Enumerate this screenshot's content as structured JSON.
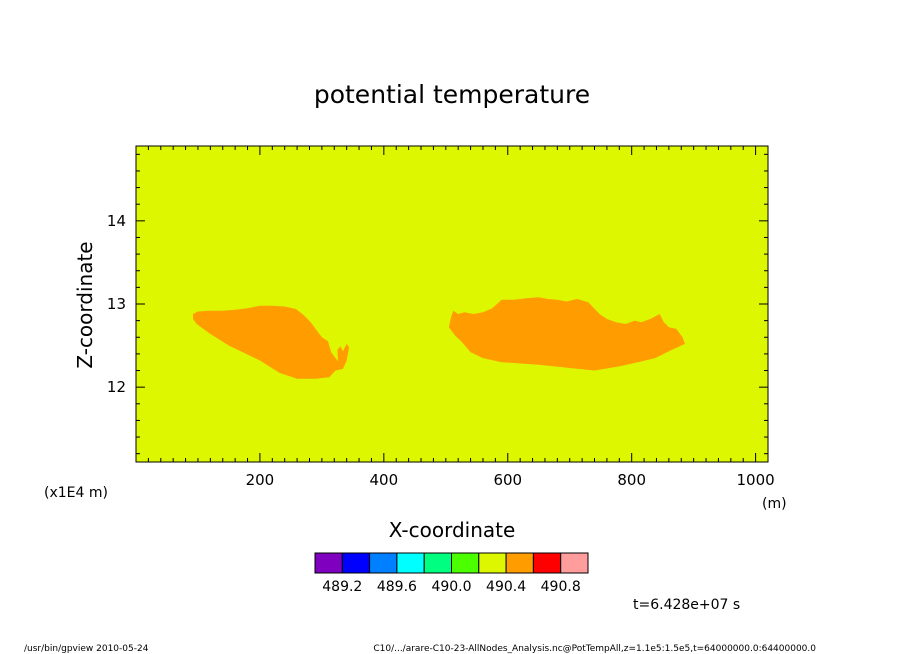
{
  "chart_data": {
    "type": "heatmap",
    "title": "potential temperature",
    "xlabel": "X-coordinate",
    "ylabel": "Z-coordinate",
    "x_units": "(m)",
    "y_units": "(x1E4 m)",
    "xlim": [
      0,
      1020
    ],
    "ylim": [
      11.1,
      14.9
    ],
    "x_ticks": [
      200,
      400,
      600,
      800,
      1000
    ],
    "y_ticks": [
      12,
      13,
      14
    ],
    "background_value_range": [
      490.0,
      490.4
    ],
    "background_color": "#ddf700",
    "anomaly_value_range": [
      490.4,
      490.6
    ],
    "anomaly_color": "#ff9c00",
    "regions": [
      {
        "name": "left warm anomaly",
        "outline": [
          [
            92,
            12.88
          ],
          [
            100,
            12.91
          ],
          [
            118,
            12.92
          ],
          [
            140,
            12.92
          ],
          [
            160,
            12.93
          ],
          [
            180,
            12.95
          ],
          [
            200,
            12.98
          ],
          [
            220,
            12.98
          ],
          [
            240,
            12.97
          ],
          [
            258,
            12.94
          ],
          [
            270,
            12.87
          ],
          [
            282,
            12.78
          ],
          [
            292,
            12.68
          ],
          [
            300,
            12.6
          ],
          [
            310,
            12.55
          ],
          [
            315,
            12.42
          ],
          [
            326,
            12.31
          ],
          [
            325,
            12.45
          ],
          [
            330,
            12.49
          ],
          [
            334,
            12.43
          ],
          [
            340,
            12.52
          ],
          [
            344,
            12.48
          ],
          [
            340,
            12.32
          ],
          [
            334,
            12.22
          ],
          [
            322,
            12.2
          ],
          [
            312,
            12.12
          ],
          [
            290,
            12.1
          ],
          [
            260,
            12.1
          ],
          [
            232,
            12.17
          ],
          [
            200,
            12.32
          ],
          [
            150,
            12.5
          ],
          [
            118,
            12.65
          ],
          [
            98,
            12.76
          ],
          [
            92,
            12.82
          ]
        ]
      },
      {
        "name": "right warm anomaly",
        "outline": [
          [
            505,
            12.72
          ],
          [
            508,
            12.83
          ],
          [
            512,
            12.92
          ],
          [
            520,
            12.88
          ],
          [
            530,
            12.9
          ],
          [
            545,
            12.88
          ],
          [
            560,
            12.9
          ],
          [
            575,
            12.95
          ],
          [
            590,
            13.05
          ],
          [
            610,
            13.05
          ],
          [
            630,
            13.07
          ],
          [
            650,
            13.08
          ],
          [
            665,
            13.06
          ],
          [
            680,
            13.05
          ],
          [
            695,
            13.03
          ],
          [
            712,
            13.06
          ],
          [
            730,
            13.02
          ],
          [
            748,
            12.88
          ],
          [
            760,
            12.82
          ],
          [
            775,
            12.78
          ],
          [
            790,
            12.76
          ],
          [
            805,
            12.8
          ],
          [
            815,
            12.78
          ],
          [
            830,
            12.82
          ],
          [
            845,
            12.88
          ],
          [
            852,
            12.78
          ],
          [
            860,
            12.72
          ],
          [
            872,
            12.7
          ],
          [
            882,
            12.6
          ],
          [
            886,
            12.52
          ],
          [
            865,
            12.45
          ],
          [
            838,
            12.35
          ],
          [
            810,
            12.3
          ],
          [
            780,
            12.25
          ],
          [
            740,
            12.2
          ],
          [
            700,
            12.23
          ],
          [
            650,
            12.27
          ],
          [
            590,
            12.3
          ],
          [
            560,
            12.35
          ],
          [
            540,
            12.42
          ],
          [
            525,
            12.55
          ],
          [
            515,
            12.62
          ]
        ]
      }
    ],
    "colorbar": {
      "colors": [
        "#7f00bf",
        "#0000ff",
        "#0080ff",
        "#00ffff",
        "#00ff80",
        "#4cff00",
        "#ddf700",
        "#ff9c00",
        "#ff0000",
        "#ff9c9c"
      ],
      "labels": [
        "489.2",
        "489.6",
        "490.0",
        "490.4",
        "490.8"
      ],
      "label_after_index": [
        1,
        3,
        5,
        7,
        9
      ]
    },
    "time_label": "t=6.428e+07 s"
  },
  "footer": {
    "left": "/usr/bin/gpview   2010-05-24",
    "right": "C10/.../arare-C10-23-AllNodes_Analysis.nc@PotTempAll,z=1.1e5:1.5e5,t=64000000.0:64400000.0"
  }
}
